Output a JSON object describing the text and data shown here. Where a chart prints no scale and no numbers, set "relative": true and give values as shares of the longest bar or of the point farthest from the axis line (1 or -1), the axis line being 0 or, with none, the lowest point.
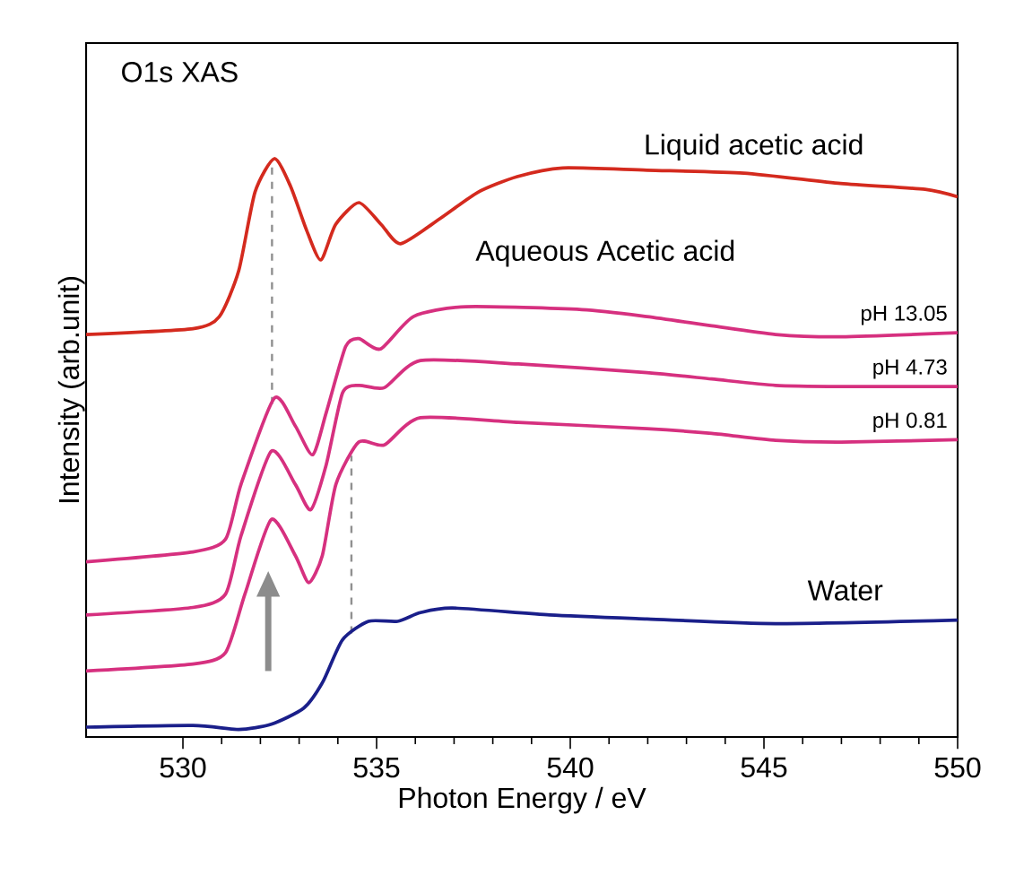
{
  "chart_data": {
    "type": "line",
    "title": "O1s XAS",
    "xlabel": "Photon Energy / eV",
    "ylabel": "Intensity (arb.unit)",
    "relative": true,
    "tick_labels": "x",
    "xlim": [
      527.5,
      550
    ],
    "xticks": [
      530,
      535,
      540,
      545,
      550
    ],
    "annotations": [
      "Aqueous Acetic acid"
    ],
    "ref_lines": [
      {
        "axis": "x",
        "value": 532.3,
        "color": "#909090",
        "line_style": "dashed"
      },
      {
        "axis": "x",
        "value": 534.35,
        "color": "#909090",
        "line_style": "dashed"
      }
    ],
    "series": [
      {
        "name": "Liquid acetic acid",
        "color": "#d42a1e",
        "x": [
          527.5,
          530.26,
          530.94,
          531.44,
          531.86,
          532.36,
          532.78,
          533.2,
          533.56,
          533.94,
          534.54,
          535.12,
          535.62,
          536.63,
          537.62,
          538.63,
          539.8,
          541.98,
          544.48,
          546.98,
          549.16,
          550
        ],
        "values": [
          0.696,
          0.706,
          0.727,
          0.806,
          0.942,
          1.0,
          0.952,
          0.875,
          0.825,
          0.886,
          0.924,
          0.886,
          0.853,
          0.896,
          0.942,
          0.969,
          0.984,
          0.98,
          0.975,
          0.957,
          0.947,
          0.934
        ]
      },
      {
        "name": "pH 13.05",
        "color": "#d6307f",
        "x": [
          527.5,
          530.26,
          531.1,
          531.5,
          532.36,
          532.9,
          533.35,
          533.7,
          534.2,
          534.54,
          535.1,
          535.95,
          537.3,
          540.3,
          541.98,
          543.65,
          545.3,
          547,
          550
        ],
        "values": [
          0.303,
          0.32,
          0.342,
          0.437,
          0.586,
          0.538,
          0.488,
          0.561,
          0.675,
          0.689,
          0.671,
          0.727,
          0.744,
          0.739,
          0.727,
          0.711,
          0.696,
          0.692,
          0.699
        ]
      },
      {
        "name": "pH  4.73",
        "color": "#d6307f",
        "x": [
          527.5,
          530.26,
          531.1,
          531.5,
          532.28,
          532.9,
          533.3,
          533.7,
          534.12,
          534.54,
          535.2,
          536.13,
          538.66,
          541.98,
          543.65,
          545.3,
          547,
          550
        ],
        "values": [
          0.211,
          0.224,
          0.247,
          0.348,
          0.494,
          0.437,
          0.393,
          0.471,
          0.595,
          0.608,
          0.604,
          0.651,
          0.645,
          0.63,
          0.619,
          0.608,
          0.606,
          0.606
        ]
      },
      {
        "name": "pH  0.81",
        "color": "#d6307f",
        "x": [
          527.5,
          530.26,
          531.1,
          531.6,
          532.28,
          532.9,
          533.25,
          533.6,
          533.95,
          534.54,
          535.2,
          536.13,
          538.66,
          541.98,
          543.65,
          545.3,
          547,
          550
        ],
        "values": [
          0.114,
          0.126,
          0.146,
          0.247,
          0.376,
          0.314,
          0.267,
          0.314,
          0.437,
          0.51,
          0.505,
          0.552,
          0.544,
          0.533,
          0.525,
          0.513,
          0.51,
          0.514
        ]
      },
      {
        "name": "Water",
        "color": "#1a1f8a",
        "x": [
          527.5,
          530.26,
          531.44,
          532.28,
          533.12,
          533.61,
          534.12,
          534.79,
          535.54,
          536.13,
          536.96,
          539.47,
          541.98,
          545.3,
          550
        ],
        "values": [
          0.017,
          0.02,
          0.013,
          0.022,
          0.05,
          0.095,
          0.168,
          0.2,
          0.2,
          0.215,
          0.223,
          0.211,
          0.204,
          0.196,
          0.202
        ]
      }
    ]
  }
}
